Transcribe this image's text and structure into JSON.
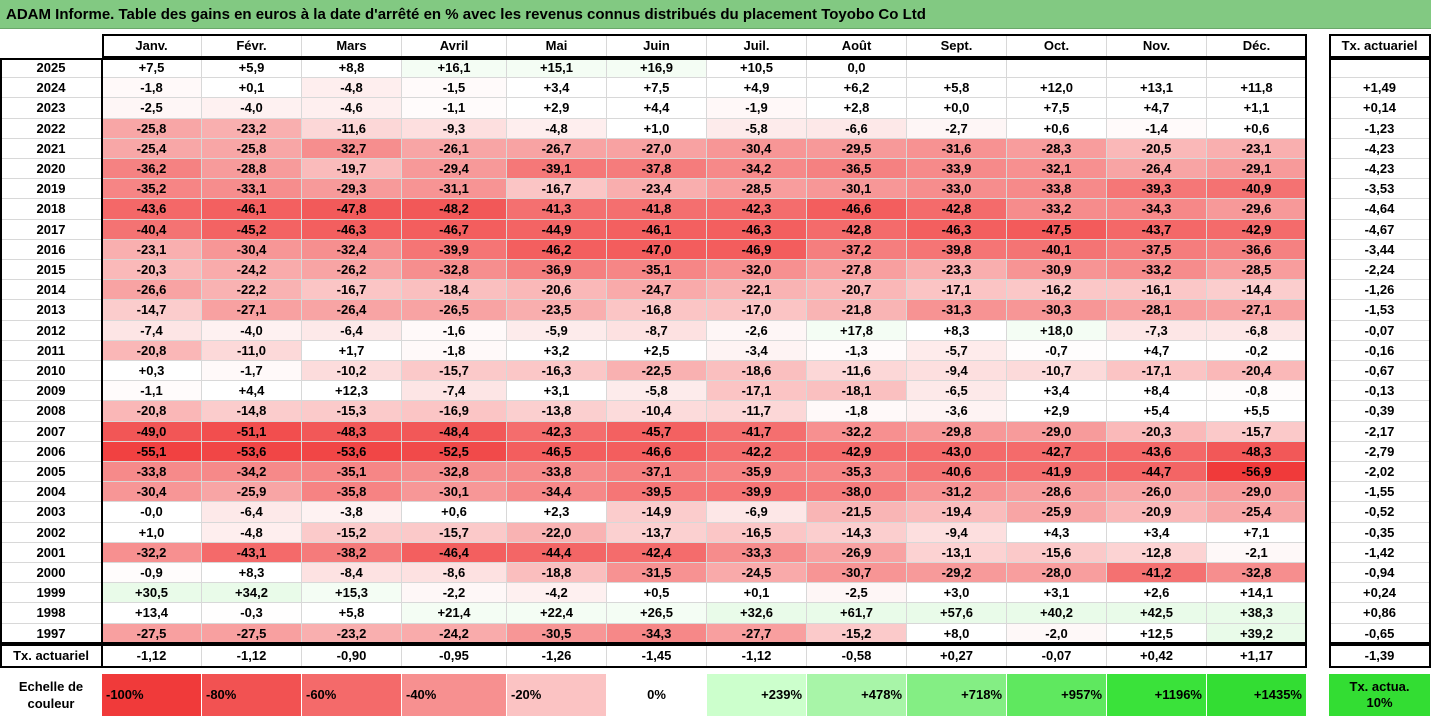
{
  "title": "ADAM Informe. Table des gains en euros à la date d'arrêté en % avec les revenus connus distribués du placement Toyobo Co Ltd",
  "months": [
    "Janv.",
    "Févr.",
    "Mars",
    "Avril",
    "Mai",
    "Juin",
    "Juil.",
    "Août",
    "Sept.",
    "Oct.",
    "Nov.",
    "Déc."
  ],
  "rate_header": "Tx. actuariel",
  "rows": [
    {
      "year": "2025",
      "values": [
        "+7,5",
        "+5,9",
        "+8,8",
        "+16,1",
        "+15,1",
        "+16,9",
        "+10,5",
        "0,0",
        "",
        "",
        "",
        ""
      ],
      "rate": ""
    },
    {
      "year": "2024",
      "values": [
        "-1,8",
        "+0,1",
        "-4,8",
        "-1,5",
        "+3,4",
        "+7,5",
        "+4,9",
        "+6,2",
        "+5,8",
        "+12,0",
        "+13,1",
        "+11,8"
      ],
      "rate": "+1,49"
    },
    {
      "year": "2023",
      "values": [
        "-2,5",
        "-4,0",
        "-4,6",
        "-1,1",
        "+2,9",
        "+4,4",
        "-1,9",
        "+2,8",
        "+0,0",
        "+7,5",
        "+4,7",
        "+1,1"
      ],
      "rate": "+0,14"
    },
    {
      "year": "2022",
      "values": [
        "-25,8",
        "-23,2",
        "-11,6",
        "-9,3",
        "-4,8",
        "+1,0",
        "-5,8",
        "-6,6",
        "-2,7",
        "+0,6",
        "-1,4",
        "+0,6"
      ],
      "rate": "-1,23"
    },
    {
      "year": "2021",
      "values": [
        "-25,4",
        "-25,8",
        "-32,7",
        "-26,1",
        "-26,7",
        "-27,0",
        "-30,4",
        "-29,5",
        "-31,6",
        "-28,3",
        "-20,5",
        "-23,1"
      ],
      "rate": "-4,23"
    },
    {
      "year": "2020",
      "values": [
        "-36,2",
        "-28,8",
        "-19,7",
        "-29,4",
        "-39,1",
        "-37,8",
        "-34,2",
        "-36,5",
        "-33,9",
        "-32,1",
        "-26,4",
        "-29,1"
      ],
      "rate": "-4,23"
    },
    {
      "year": "2019",
      "values": [
        "-35,2",
        "-33,1",
        "-29,3",
        "-31,1",
        "-16,7",
        "-23,4",
        "-28,5",
        "-30,1",
        "-33,0",
        "-33,8",
        "-39,3",
        "-40,9"
      ],
      "rate": "-3,53"
    },
    {
      "year": "2018",
      "values": [
        "-43,6",
        "-46,1",
        "-47,8",
        "-48,2",
        "-41,3",
        "-41,8",
        "-42,3",
        "-46,6",
        "-42,8",
        "-33,2",
        "-34,3",
        "-29,6"
      ],
      "rate": "-4,64"
    },
    {
      "year": "2017",
      "values": [
        "-40,4",
        "-45,2",
        "-46,3",
        "-46,7",
        "-44,9",
        "-46,1",
        "-46,3",
        "-42,8",
        "-46,3",
        "-47,5",
        "-43,7",
        "-42,9"
      ],
      "rate": "-4,67"
    },
    {
      "year": "2016",
      "values": [
        "-23,1",
        "-30,4",
        "-32,4",
        "-39,9",
        "-46,2",
        "-47,0",
        "-46,9",
        "-37,2",
        "-39,8",
        "-40,1",
        "-37,5",
        "-36,6"
      ],
      "rate": "-3,44"
    },
    {
      "year": "2015",
      "values": [
        "-20,3",
        "-24,2",
        "-26,2",
        "-32,8",
        "-36,9",
        "-35,1",
        "-32,0",
        "-27,8",
        "-23,3",
        "-30,9",
        "-33,2",
        "-28,5"
      ],
      "rate": "-2,24"
    },
    {
      "year": "2014",
      "values": [
        "-26,6",
        "-22,2",
        "-16,7",
        "-18,4",
        "-20,6",
        "-24,7",
        "-22,1",
        "-20,7",
        "-17,1",
        "-16,2",
        "-16,1",
        "-14,4"
      ],
      "rate": "-1,26"
    },
    {
      "year": "2013",
      "values": [
        "-14,7",
        "-27,1",
        "-26,4",
        "-26,5",
        "-23,5",
        "-16,8",
        "-17,0",
        "-21,8",
        "-31,3",
        "-30,3",
        "-28,1",
        "-27,1"
      ],
      "rate": "-1,53"
    },
    {
      "year": "2012",
      "values": [
        "-7,4",
        "-4,0",
        "-6,4",
        "-1,6",
        "-5,9",
        "-8,7",
        "-2,6",
        "+17,8",
        "+8,3",
        "+18,0",
        "-7,3",
        "-6,8"
      ],
      "rate": "-0,07"
    },
    {
      "year": "2011",
      "values": [
        "-20,8",
        "-11,0",
        "+1,7",
        "-1,8",
        "+3,2",
        "+2,5",
        "-3,4",
        "-1,3",
        "-5,7",
        "-0,7",
        "+4,7",
        "-0,2"
      ],
      "rate": "-0,16"
    },
    {
      "year": "2010",
      "values": [
        "+0,3",
        "-1,7",
        "-10,2",
        "-15,7",
        "-16,3",
        "-22,5",
        "-18,6",
        "-11,6",
        "-9,4",
        "-10,7",
        "-17,1",
        "-20,4"
      ],
      "rate": "-0,67"
    },
    {
      "year": "2009",
      "values": [
        "-1,1",
        "+4,4",
        "+12,3",
        "-7,4",
        "+3,1",
        "-5,8",
        "-17,1",
        "-18,1",
        "-6,5",
        "+3,4",
        "+8,4",
        "-0,8"
      ],
      "rate": "-0,13"
    },
    {
      "year": "2008",
      "values": [
        "-20,8",
        "-14,8",
        "-15,3",
        "-16,9",
        "-13,8",
        "-10,4",
        "-11,7",
        "-1,8",
        "-3,6",
        "+2,9",
        "+5,4",
        "+5,5"
      ],
      "rate": "-0,39"
    },
    {
      "year": "2007",
      "values": [
        "-49,0",
        "-51,1",
        "-48,3",
        "-48,4",
        "-42,3",
        "-45,7",
        "-41,7",
        "-32,2",
        "-29,8",
        "-29,0",
        "-20,3",
        "-15,7"
      ],
      "rate": "-2,17"
    },
    {
      "year": "2006",
      "values": [
        "-55,1",
        "-53,6",
        "-53,6",
        "-52,5",
        "-46,5",
        "-46,6",
        "-42,2",
        "-42,9",
        "-43,0",
        "-42,7",
        "-43,6",
        "-48,3"
      ],
      "rate": "-2,79"
    },
    {
      "year": "2005",
      "values": [
        "-33,8",
        "-34,2",
        "-35,1",
        "-32,8",
        "-33,8",
        "-37,1",
        "-35,9",
        "-35,3",
        "-40,6",
        "-41,9",
        "-44,7",
        "-56,9"
      ],
      "rate": "-2,02"
    },
    {
      "year": "2004",
      "values": [
        "-30,4",
        "-25,9",
        "-35,8",
        "-30,1",
        "-34,4",
        "-39,5",
        "-39,9",
        "-38,0",
        "-31,2",
        "-28,6",
        "-26,0",
        "-29,0"
      ],
      "rate": "-1,55"
    },
    {
      "year": "2003",
      "values": [
        "-0,0",
        "-6,4",
        "-3,8",
        "+0,6",
        "+2,3",
        "-14,9",
        "-6,9",
        "-21,5",
        "-19,4",
        "-25,9",
        "-20,9",
        "-25,4"
      ],
      "rate": "-0,52"
    },
    {
      "year": "2002",
      "values": [
        "+1,0",
        "-4,8",
        "-15,2",
        "-15,7",
        "-22,0",
        "-13,7",
        "-16,5",
        "-14,3",
        "-9,4",
        "+4,3",
        "+3,4",
        "+7,1"
      ],
      "rate": "-0,35"
    },
    {
      "year": "2001",
      "values": [
        "-32,2",
        "-43,1",
        "-38,2",
        "-46,4",
        "-44,4",
        "-42,4",
        "-33,3",
        "-26,9",
        "-13,1",
        "-15,6",
        "-12,8",
        "-2,1"
      ],
      "rate": "-1,42"
    },
    {
      "year": "2000",
      "values": [
        "-0,9",
        "+8,3",
        "-8,4",
        "-8,6",
        "-18,8",
        "-31,5",
        "-24,5",
        "-30,7",
        "-29,2",
        "-28,0",
        "-41,2",
        "-32,8"
      ],
      "rate": "-0,94"
    },
    {
      "year": "1999",
      "values": [
        "+30,5",
        "+34,2",
        "+15,3",
        "-2,2",
        "-4,2",
        "+0,5",
        "+0,1",
        "-2,5",
        "+3,0",
        "+3,1",
        "+2,6",
        "+14,1"
      ],
      "rate": "+0,24"
    },
    {
      "year": "1998",
      "values": [
        "+13,4",
        "-0,3",
        "+5,8",
        "+21,4",
        "+22,4",
        "+26,5",
        "+32,6",
        "+61,7",
        "+57,6",
        "+40,2",
        "+42,5",
        "+38,3"
      ],
      "rate": "+0,86"
    },
    {
      "year": "1997",
      "values": [
        "-27,5",
        "-27,5",
        "-23,2",
        "-24,2",
        "-30,5",
        "-34,3",
        "-27,7",
        "-15,2",
        "+8,0",
        "-2,0",
        "+12,5",
        "+39,2"
      ],
      "rate": "-0,65"
    }
  ],
  "footer": {
    "label": "Tx. actuariel",
    "values": [
      "-1,12",
      "-1,12",
      "-0,90",
      "-0,95",
      "-1,26",
      "-1,45",
      "-1,12",
      "-0,58",
      "+0,27",
      "-0,07",
      "+0,42",
      "+1,17"
    ],
    "rate": "-1,39"
  },
  "legend": {
    "label": "Echelle de couleur",
    "swatches": [
      {
        "text": "-100%",
        "color": "#f03a3a",
        "align": "left"
      },
      {
        "text": "-80%",
        "color": "#f25252",
        "align": "left"
      },
      {
        "text": "-60%",
        "color": "#f46a6a",
        "align": "left"
      },
      {
        "text": "-40%",
        "color": "#f79090",
        "align": "left"
      },
      {
        "text": "-20%",
        "color": "#fbc3c3",
        "align": "left"
      },
      {
        "text": "0%",
        "color": "#ffffff",
        "align": "center"
      },
      {
        "text": "+239%",
        "color": "#ccffcc",
        "align": "right"
      },
      {
        "text": "+478%",
        "color": "#a8f5a8",
        "align": "right"
      },
      {
        "text": "+718%",
        "color": "#84ee84",
        "align": "right"
      },
      {
        "text": "+957%",
        "color": "#5fe85f",
        "align": "right"
      },
      {
        "text": "+1196%",
        "color": "#3ae23a",
        "align": "right"
      },
      {
        "text": "+1435%",
        "color": "#33dd33",
        "align": "right"
      }
    ],
    "rate_swatch": {
      "text": "Tx. actua. 10%",
      "color": "#33dd33"
    }
  },
  "colors": {
    "title_bg": "#82c982",
    "neg_strong": "#f03a3a",
    "pos_strong": "#33dd33"
  }
}
